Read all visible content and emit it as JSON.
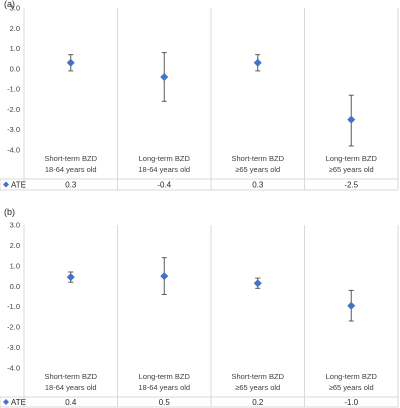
{
  "chart_data": [
    {
      "type": "scatter",
      "panel_label": "(a)",
      "categories": [
        "Short-term BZD\n18-64 years old",
        "Long-term BZD\n18-64 years old",
        "Short-term BZD\n≥65 years old",
        "Long-term BZD\n≥65 years old"
      ],
      "series": [
        {
          "name": "ATE",
          "values": [
            0.3,
            -0.4,
            0.3,
            -2.5
          ],
          "values_text": [
            "0.3",
            "-0.4",
            "0.3",
            "-2.5"
          ],
          "error_low": [
            -0.1,
            -1.6,
            -0.1,
            -3.8
          ],
          "error_high": [
            0.7,
            0.8,
            0.7,
            -1.3
          ]
        }
      ],
      "yticks": [
        "3.0",
        "2.0",
        "1.0",
        "0.0",
        "-1.0",
        "-2.0",
        "-3.0",
        "-4.0"
      ],
      "ylim": [
        -4.0,
        3.0
      ],
      "marker_color": "#4472C4",
      "error_bar_color": "#595959",
      "gridlines": "vertical",
      "legend": "data table"
    },
    {
      "type": "scatter",
      "panel_label": "(b)",
      "categories": [
        "Short-term BZD\n18-64 years old",
        "Long-term BZD\n18-64 years old",
        "Short-term BZD\n≥65 years old",
        "Long-term BZD\n≥65 years old"
      ],
      "series": [
        {
          "name": "ATE",
          "values": [
            0.45,
            0.5,
            0.15,
            -0.95
          ],
          "values_text": [
            "0.4",
            "0.5",
            "0.2",
            "-1.0"
          ],
          "error_low": [
            0.2,
            -0.4,
            -0.1,
            -1.7
          ],
          "error_high": [
            0.7,
            1.4,
            0.4,
            -0.2
          ]
        }
      ],
      "yticks": [
        "3.0",
        "2.0",
        "1.0",
        "0.0",
        "-1.0",
        "-2.0",
        "-3.0",
        "-4.0"
      ],
      "ylim": [
        -4.0,
        3.0
      ],
      "marker_color": "#4472C4",
      "error_bar_color": "#595959",
      "gridlines": "vertical",
      "legend": "data table"
    }
  ]
}
